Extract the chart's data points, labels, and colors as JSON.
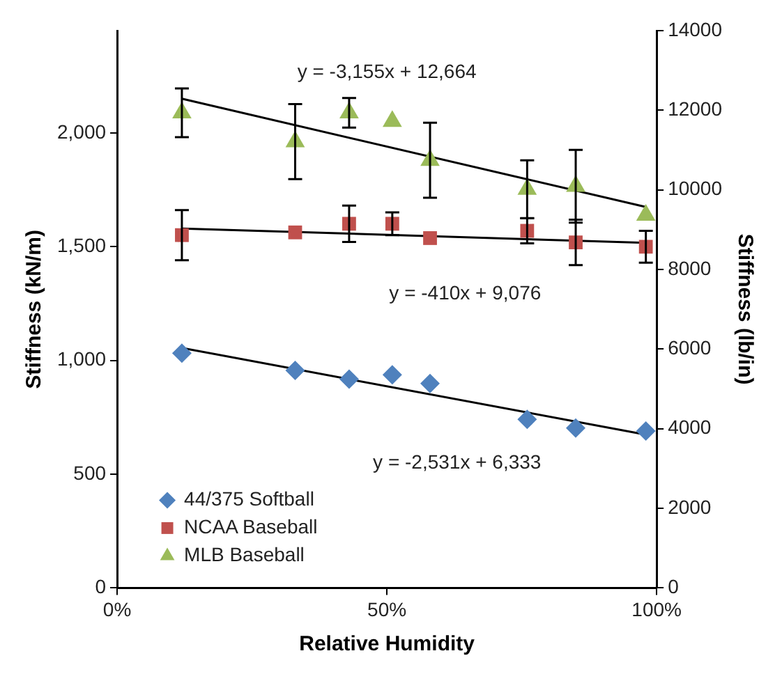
{
  "chart_data": {
    "type": "scatter",
    "xlabel": "Relative Humidity",
    "ylabel": "Stiffness (kN/m)",
    "y2label": "Stiffness (lb/in)",
    "xlim": [
      0,
      1
    ],
    "xticks": [
      {
        "value": 0,
        "label": "0%"
      },
      {
        "value": 0.5,
        "label": "50%"
      },
      {
        "value": 1,
        "label": "100%"
      }
    ],
    "ylim": [
      0,
      2450
    ],
    "yticks": [
      0,
      500,
      {
        "value": 1000,
        "label": "1,000"
      },
      {
        "value": 1500,
        "label": "1,500"
      },
      {
        "value": 2000,
        "label": "2,000"
      }
    ],
    "y2lim": [
      0,
      14000
    ],
    "y2ticks": [
      0,
      2000,
      4000,
      6000,
      8000,
      10000,
      12000,
      14000
    ],
    "grid": false,
    "legend": "bottom left",
    "series": [
      {
        "name": "44/375 Softball",
        "color": "#4f81bd",
        "marker": "diamond",
        "x": [
          0.12,
          0.33,
          0.43,
          0.51,
          0.58,
          0.76,
          0.85,
          0.98
        ],
        "values": [
          1032,
          956,
          918,
          937,
          899,
          741,
          703,
          690
        ]
      },
      {
        "name": "NCAA Baseball",
        "color": "#c0504d",
        "marker": "square",
        "x": [
          0.12,
          0.33,
          0.43,
          0.51,
          0.58,
          0.76,
          0.85,
          0.98
        ],
        "values": [
          1551,
          1563,
          1601,
          1601,
          1538,
          1570,
          1519,
          1500
        ],
        "errors": [
          110,
          null,
          80,
          50,
          null,
          55,
          100,
          70
        ]
      },
      {
        "name": "MLB Baseball",
        "color": "#9bbb59",
        "marker": "triangle",
        "x": [
          0.12,
          0.33,
          0.43,
          0.51,
          0.58,
          0.76,
          0.85,
          0.98
        ],
        "values": [
          2089,
          1962,
          2089,
          2051,
          1880,
          1753,
          1766,
          1639
        ],
        "errors": [
          107,
          165,
          65,
          null,
          165,
          127,
          160,
          null
        ]
      },
      {
        "type": "line",
        "axis": "y2",
        "color": "#000000",
        "marker": "none",
        "x": [
          0.12,
          0.98
        ],
        "values": [
          6030,
          3850
        ]
      },
      {
        "type": "line",
        "axis": "y2",
        "color": "#000000",
        "marker": "none",
        "x": [
          0.12,
          0.98
        ],
        "values": [
          9030,
          8670
        ]
      },
      {
        "type": "line",
        "axis": "y2",
        "color": "#000000",
        "marker": "none",
        "x": [
          0.12,
          0.98
        ],
        "values": [
          12290,
          9570
        ]
      }
    ],
    "annotations": [
      "y = -3,155x + 12,664",
      "y = -410x + 9,076",
      "y = -2,531x + 6,333"
    ]
  }
}
